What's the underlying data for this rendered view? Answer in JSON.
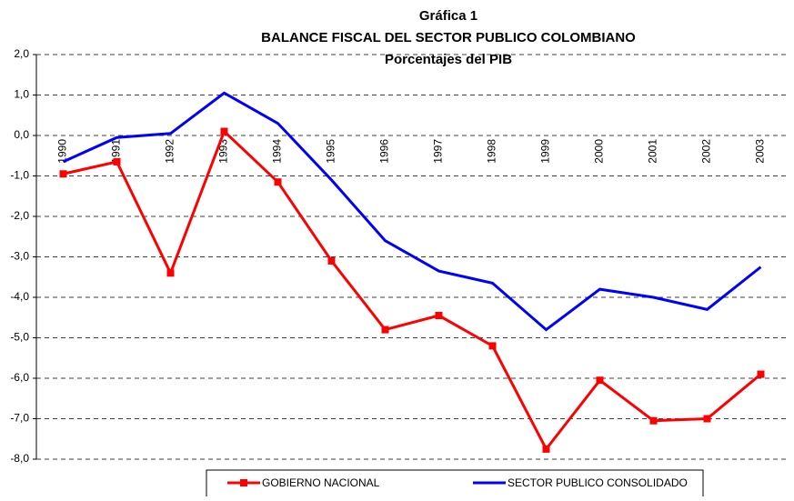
{
  "chart_data": {
    "type": "line",
    "title_lines": [
      "Gráfica 1",
      "BALANCE FISCAL DEL SECTOR PUBLICO COLOMBIANO",
      "Porcentajes del PIB"
    ],
    "categories": [
      "1990",
      "1991",
      "1992",
      "1993",
      "1994",
      "1995",
      "1996",
      "1997",
      "1998",
      "1999",
      "2000",
      "2001",
      "2002",
      "2003"
    ],
    "series": [
      {
        "name": "GOBIERNO NACIONAL",
        "color": "#ff0000",
        "marker": "square",
        "values": [
          -0.95,
          -0.65,
          -3.4,
          0.1,
          -1.15,
          -3.1,
          -4.8,
          -4.45,
          -5.2,
          -7.75,
          -6.05,
          -7.05,
          -7.0,
          -5.9
        ]
      },
      {
        "name": "SECTOR PUBLICO CONSOLIDADO",
        "color": "#0000ff",
        "values": [
          -0.65,
          -0.05,
          0.05,
          1.05,
          0.3,
          -1.1,
          -2.6,
          -3.35,
          -3.65,
          -4.8,
          -3.8,
          -4.0,
          -4.3,
          -3.25
        ]
      }
    ],
    "ylim": [
      -8,
      2
    ],
    "yticks": [
      {
        "value": 2,
        "label": "2,0"
      },
      {
        "value": 1,
        "label": "1,0"
      },
      {
        "value": 0,
        "label": "0,0"
      },
      {
        "value": -1,
        "label": "-1,0"
      },
      {
        "value": -2,
        "label": "-2,0"
      },
      {
        "value": -3,
        "label": "-3,0"
      },
      {
        "value": -4,
        "label": "-4,0"
      },
      {
        "value": -5,
        "label": "-5,0"
      },
      {
        "value": -6,
        "label": "-6,0"
      },
      {
        "value": -7,
        "label": "-7,0"
      },
      {
        "value": -8,
        "label": "-8,0"
      }
    ],
    "grid": true,
    "legend": "bottom"
  }
}
